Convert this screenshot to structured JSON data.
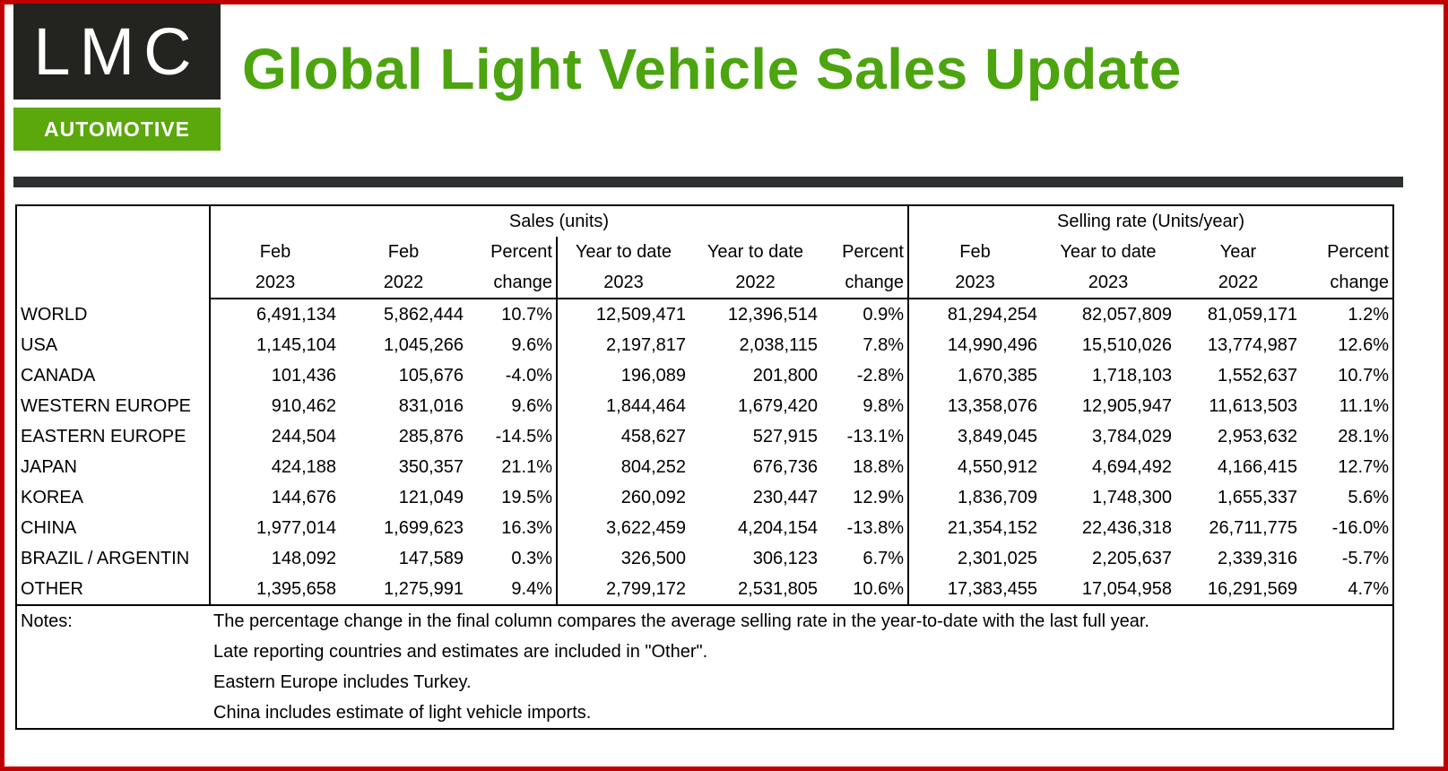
{
  "logo": {
    "top": "LMC",
    "bottom": "AUTOMOTIVE"
  },
  "title": "Global Light Vehicle Sales Update",
  "groups": {
    "sales": "Sales (units)",
    "rate": "Selling rate (Units/year)"
  },
  "headers": [
    [
      "Feb",
      "2023"
    ],
    [
      "Feb",
      "2022"
    ],
    [
      "Percent",
      "change"
    ],
    [
      "Year to date",
      "2023"
    ],
    [
      "Year to date",
      "2022"
    ],
    [
      "Percent",
      "change"
    ],
    [
      "Feb",
      "2023"
    ],
    [
      "Year to date",
      "2023"
    ],
    [
      "Year",
      "2022"
    ],
    [
      "Percent",
      "change"
    ]
  ],
  "rows": [
    {
      "region": "WORLD",
      "values": [
        "6,491,134",
        "5,862,444",
        "10.7%",
        "12,509,471",
        "12,396,514",
        "0.9%",
        "81,294,254",
        "82,057,809",
        "81,059,171",
        "1.2%"
      ]
    },
    {
      "region": "USA",
      "values": [
        "1,145,104",
        "1,045,266",
        "9.6%",
        "2,197,817",
        "2,038,115",
        "7.8%",
        "14,990,496",
        "15,510,026",
        "13,774,987",
        "12.6%"
      ]
    },
    {
      "region": "CANADA",
      "values": [
        "101,436",
        "105,676",
        "-4.0%",
        "196,089",
        "201,800",
        "-2.8%",
        "1,670,385",
        "1,718,103",
        "1,552,637",
        "10.7%"
      ]
    },
    {
      "region": "WESTERN EUROPE",
      "values": [
        "910,462",
        "831,016",
        "9.6%",
        "1,844,464",
        "1,679,420",
        "9.8%",
        "13,358,076",
        "12,905,947",
        "11,613,503",
        "11.1%"
      ]
    },
    {
      "region": "EASTERN EUROPE",
      "values": [
        "244,504",
        "285,876",
        "-14.5%",
        "458,627",
        "527,915",
        "-13.1%",
        "3,849,045",
        "3,784,029",
        "2,953,632",
        "28.1%"
      ]
    },
    {
      "region": "JAPAN",
      "values": [
        "424,188",
        "350,357",
        "21.1%",
        "804,252",
        "676,736",
        "18.8%",
        "4,550,912",
        "4,694,492",
        "4,166,415",
        "12.7%"
      ]
    },
    {
      "region": "KOREA",
      "values": [
        "144,676",
        "121,049",
        "19.5%",
        "260,092",
        "230,447",
        "12.9%",
        "1,836,709",
        "1,748,300",
        "1,655,337",
        "5.6%"
      ]
    },
    {
      "region": "CHINA",
      "values": [
        "1,977,014",
        "1,699,623",
        "16.3%",
        "3,622,459",
        "4,204,154",
        "-13.8%",
        "21,354,152",
        "22,436,318",
        "26,711,775",
        "-16.0%"
      ]
    },
    {
      "region": "BRAZIL / ARGENTIN",
      "values": [
        "148,092",
        "147,589",
        "0.3%",
        "326,500",
        "306,123",
        "6.7%",
        "2,301,025",
        "2,205,637",
        "2,339,316",
        "-5.7%"
      ]
    },
    {
      "region": "OTHER",
      "values": [
        "1,395,658",
        "1,275,991",
        "9.4%",
        "2,799,172",
        "2,531,805",
        "10.6%",
        "17,383,455",
        "17,054,958",
        "16,291,569",
        "4.7%"
      ]
    }
  ],
  "notes": {
    "label": "Notes:",
    "lines": [
      "The percentage change in the final column compares the average selling rate in the year-to-date with the last full year.",
      "Late reporting countries and estimates are included in \"Other\".",
      "Eastern Europe includes Turkey.",
      "China includes estimate of light vehicle imports."
    ]
  }
}
